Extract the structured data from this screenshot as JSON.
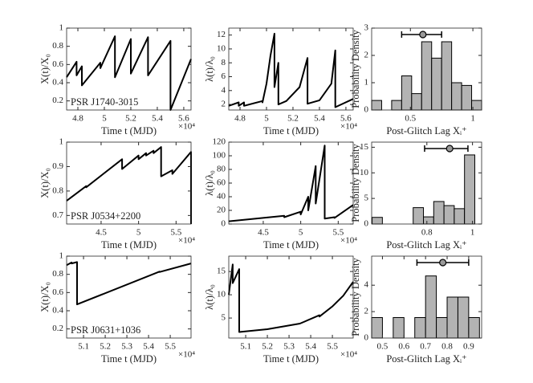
{
  "chart_data": [
    {
      "type": "line",
      "xlabel": "Time t (MJD)",
      "ylabel": "X(t)/X₀",
      "annotation": "PSR J1740-3015",
      "x_multiplier": "×10⁴",
      "color": "#000000",
      "xlim": [
        4.715,
        5.655
      ],
      "ylim": [
        0.1,
        1
      ],
      "xticks": [
        4.8,
        5,
        5.2,
        5.4,
        5.6
      ],
      "yticks": [
        0.2,
        0.4,
        0.6,
        0.8,
        1
      ],
      "x": [
        4.715,
        4.79,
        4.79,
        4.83,
        4.83,
        4.97,
        4.97,
        5.08,
        5.08,
        5.2,
        5.2,
        5.33,
        5.33,
        5.5,
        5.5,
        5.655
      ],
      "values": [
        0.46,
        0.63,
        0.48,
        0.58,
        0.37,
        0.62,
        0.56,
        0.91,
        0.46,
        0.88,
        0.5,
        0.9,
        0.48,
        0.86,
        0.1,
        0.66
      ]
    },
    {
      "type": "line",
      "xlabel": "Time t (MJD)",
      "ylabel": "λ(t)/λ₀",
      "x_multiplier": "×10⁴",
      "color": "#000000",
      "xlim": [
        4.715,
        5.655
      ],
      "ylim": [
        1.2,
        13
      ],
      "xticks": [
        4.8,
        5,
        5.2,
        5.4,
        5.6
      ],
      "yticks": [
        2,
        4,
        6,
        8,
        10,
        12
      ],
      "x": [
        4.715,
        4.79,
        4.79,
        4.83,
        4.83,
        4.97,
        4.97,
        5.0,
        5.03,
        5.06,
        5.06,
        5.09,
        5.09,
        5.15,
        5.25,
        5.31,
        5.31,
        5.4,
        5.49,
        5.52,
        5.52,
        5.655
      ],
      "values": [
        1.8,
        2.3,
        1.8,
        2.3,
        1.8,
        2.5,
        2.3,
        5,
        9,
        12.2,
        4.5,
        8,
        2.0,
        2.5,
        4.5,
        8.7,
        2.1,
        2.6,
        5,
        9.8,
        1.6,
        2.8
      ]
    },
    {
      "type": "histogram",
      "xlabel": "Post-Glitch Lag Xᵢ⁺",
      "ylabel": "Probability Density",
      "color": "#b3b3b3",
      "marker_color": "#999999",
      "xlim": [
        0.19,
        1.07
      ],
      "ylim": [
        0,
        3
      ],
      "xticks": [
        0.5,
        1
      ],
      "yticks": [
        0,
        1,
        2,
        3
      ],
      "bins": [
        0.19,
        0.27,
        0.35,
        0.43,
        0.51,
        0.59,
        0.67,
        0.75,
        0.83,
        0.91,
        0.99,
        1.07
      ],
      "values": [
        0.35,
        0,
        0.35,
        1.25,
        0.6,
        2.5,
        1.9,
        2.5,
        1.0,
        0.9,
        0.35
      ],
      "mean": 0.6,
      "interval": [
        0.43,
        0.75
      ]
    },
    {
      "type": "line",
      "xlabel": "Time t (MJD)",
      "ylabel": "X(t)/X₀",
      "annotation": "PSR J0534+2200",
      "x_multiplier": "×10⁴",
      "color": "#000000",
      "xlim": [
        4.04,
        5.7
      ],
      "ylim": [
        0.665,
        1
      ],
      "xticks": [
        4.5,
        5,
        5.5
      ],
      "yticks": [
        0.7,
        0.8,
        0.9,
        1
      ],
      "x": [
        4.04,
        4.3,
        4.3,
        4.78,
        4.78,
        5.0,
        5.0,
        5.1,
        5.1,
        5.2,
        5.2,
        5.3,
        5.3,
        5.45,
        5.45,
        5.7,
        5.7
      ],
      "values": [
        0.76,
        0.82,
        0.815,
        0.93,
        0.89,
        0.945,
        0.93,
        0.955,
        0.945,
        0.965,
        0.955,
        0.98,
        0.86,
        0.885,
        0.87,
        0.96,
        0.665
      ]
    },
    {
      "type": "line",
      "xlabel": "Time t (MJD)",
      "ylabel": "λ(t)/λ₀",
      "x_multiplier": "×10⁴",
      "color": "#000000",
      "xlim": [
        4.04,
        5.7
      ],
      "ylim": [
        0,
        120
      ],
      "xticks": [
        4.5,
        5,
        5.5
      ],
      "yticks": [
        0,
        20,
        40,
        60,
        80,
        100,
        120
      ],
      "x": [
        4.04,
        4.78,
        4.78,
        5.0,
        5.0,
        5.1,
        5.1,
        5.2,
        5.2,
        5.32,
        5.32,
        5.45,
        5.45,
        5.7
      ],
      "values": [
        4,
        12,
        10,
        18,
        14,
        40,
        20,
        85,
        30,
        115,
        8,
        10,
        9,
        28
      ]
    },
    {
      "type": "histogram",
      "xlabel": "Post-Glitch Lag Xᵢ⁺",
      "ylabel": "Probability Density",
      "color": "#b3b3b3",
      "marker_color": "#999999",
      "xlim": [
        0.558,
        1.04
      ],
      "ylim": [
        0,
        16
      ],
      "xticks": [
        0.8,
        1
      ],
      "yticks": [
        0,
        5,
        10,
        15
      ],
      "bins": [
        0.56,
        0.605,
        0.65,
        0.695,
        0.74,
        0.785,
        0.83,
        0.875,
        0.92,
        0.965,
        1.01
      ],
      "values": [
        1.3,
        0,
        0,
        0,
        3.2,
        1.4,
        4.4,
        3.6,
        3.0,
        13.5
      ],
      "mean": 0.9,
      "interval": [
        0.79,
        0.98
      ]
    },
    {
      "type": "line",
      "xlabel": "Time t (MJD)",
      "ylabel": "X(t)/X₀",
      "annotation": "PSR J0631+1036",
      "x_multiplier": "×10⁴",
      "color": "#000000",
      "xlim": [
        5.022,
        5.596
      ],
      "ylim": [
        0.1,
        1
      ],
      "xticks": [
        5.1,
        5.2,
        5.3,
        5.4,
        5.5
      ],
      "yticks": [
        0.2,
        0.4,
        0.6,
        0.8,
        1
      ],
      "x": [
        5.022,
        5.045,
        5.045,
        5.07,
        5.07,
        5.45,
        5.45,
        5.596
      ],
      "values": [
        0.9,
        0.93,
        0.92,
        0.935,
        0.47,
        0.83,
        0.825,
        0.92
      ]
    },
    {
      "type": "line",
      "xlabel": "Time t (MJD)",
      "ylabel": "λ(t)/λ₀",
      "x_multiplier": "×10⁴",
      "color": "#000000",
      "xlim": [
        5.022,
        5.596
      ],
      "ylim": [
        0.7,
        18.3
      ],
      "xticks": [
        5.1,
        5.2,
        5.3,
        5.4,
        5.5
      ],
      "yticks": [
        5,
        10,
        15
      ],
      "x": [
        5.022,
        5.04,
        5.04,
        5.07,
        5.07,
        5.2,
        5.35,
        5.44,
        5.44,
        5.5,
        5.55,
        5.596
      ],
      "values": [
        10,
        16.5,
        12.5,
        15.5,
        2.0,
        2.6,
        3.8,
        5.6,
        5.3,
        7.5,
        9.8,
        12.8
      ]
    },
    {
      "type": "histogram",
      "xlabel": "Post-Glitch Lag Xᵢ⁺",
      "ylabel": "Probability Density",
      "color": "#b3b3b3",
      "marker_color": "#999999",
      "xlim": [
        0.45,
        0.96
      ],
      "ylim": [
        0,
        6.2
      ],
      "xticks": [
        0.5,
        0.6,
        0.7,
        0.8,
        0.9
      ],
      "yticks": [
        0,
        2,
        4
      ],
      "bins": [
        0.45,
        0.5,
        0.55,
        0.6,
        0.65,
        0.7,
        0.75,
        0.8,
        0.85,
        0.9,
        0.95
      ],
      "values": [
        1.55,
        0,
        1.55,
        0,
        1.55,
        4.7,
        1.55,
        3.1,
        3.1,
        1.55
      ],
      "mean": 0.78,
      "interval": [
        0.66,
        0.9
      ]
    }
  ]
}
